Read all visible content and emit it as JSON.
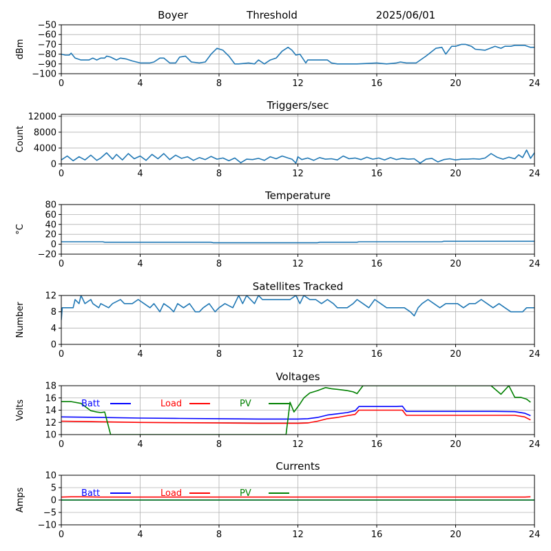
{
  "header": {
    "station": "Boyer",
    "trigger_mode": "Threshold",
    "date": "2025/06/01"
  },
  "colors": {
    "series_default": "#1f77b4",
    "batt": "#0000ff",
    "load": "#ff0000",
    "pv": "#008000",
    "grid": "#b0b0b0",
    "axis": "#000000"
  },
  "chart_data": [
    {
      "type": "line",
      "id": "signal",
      "title": "",
      "xlabel": "",
      "ylabel": "dBm",
      "xlim": [
        0,
        24
      ],
      "ylim": [
        -100,
        -50
      ],
      "xticks": [
        0,
        4,
        8,
        12,
        16,
        20,
        24
      ],
      "yticks": [
        -100,
        -90,
        -80,
        -70,
        -60,
        -50
      ],
      "grid": true,
      "series": [
        {
          "color": "#1f77b4",
          "x": [
            0,
            0.2,
            0.4,
            0.5,
            0.7,
            1.0,
            1.4,
            1.6,
            1.8,
            2.0,
            2.2,
            2.3,
            2.5,
            2.8,
            3.0,
            3.3,
            3.6,
            4.0,
            4.5,
            4.7,
            5.0,
            5.2,
            5.5,
            5.8,
            6.0,
            6.3,
            6.6,
            7.0,
            7.3,
            7.6,
            7.9,
            8.2,
            8.5,
            8.8,
            9.0,
            9.5,
            9.8,
            10.0,
            10.3,
            10.6,
            10.9,
            11.2,
            11.5,
            11.7,
            11.9,
            12.1,
            12.3,
            12.4,
            12.5,
            13.0,
            13.5,
            13.7,
            14.0,
            15.0,
            16.0,
            16.5,
            17.0,
            17.2,
            17.5,
            18.0,
            18.5,
            19.0,
            19.3,
            19.5,
            19.8,
            20.0,
            20.3,
            20.5,
            20.8,
            21.0,
            21.5,
            22.0,
            22.3,
            22.5,
            22.8,
            23.0,
            23.5,
            23.8,
            24.0
          ],
          "y": [
            -80,
            -81,
            -81,
            -79,
            -84,
            -86,
            -86,
            -84,
            -86,
            -84,
            -84,
            -82,
            -83,
            -86,
            -84,
            -85,
            -87,
            -89,
            -89,
            -88,
            -84,
            -84,
            -89,
            -89,
            -83,
            -82,
            -88,
            -89,
            -88,
            -80,
            -74,
            -76,
            -82,
            -90,
            -90,
            -89,
            -90,
            -86,
            -90,
            -86,
            -84,
            -77,
            -73,
            -76,
            -81,
            -80,
            -86,
            -89,
            -86,
            -86,
            -86,
            -89,
            -90,
            -90,
            -89,
            -90,
            -89,
            -88,
            -89,
            -89,
            -82,
            -74,
            -73,
            -80,
            -72,
            -72,
            -70,
            -70,
            -72,
            -75,
            -76,
            -72,
            -74,
            -72,
            -72,
            -71,
            -71,
            -73,
            -73
          ]
        }
      ]
    },
    {
      "type": "line",
      "id": "triggers",
      "title": "Triggers/sec",
      "xlabel": "",
      "ylabel": "Count",
      "xlim": [
        0,
        24
      ],
      "ylim": [
        0,
        12500
      ],
      "xticks": [
        0,
        4,
        8,
        12,
        16,
        20,
        24
      ],
      "yticks": [
        0,
        4000,
        8000,
        12000
      ],
      "grid": true,
      "series": [
        {
          "color": "#1f77b4",
          "x": [
            0,
            0.3,
            0.6,
            0.9,
            1.2,
            1.5,
            1.8,
            2.0,
            2.3,
            2.6,
            2.8,
            3.1,
            3.4,
            3.7,
            4.0,
            4.3,
            4.6,
            4.9,
            5.2,
            5.5,
            5.8,
            6.1,
            6.4,
            6.7,
            7.0,
            7.3,
            7.6,
            7.9,
            8.2,
            8.5,
            8.8,
            9.1,
            9.4,
            9.7,
            10.0,
            10.3,
            10.6,
            10.9,
            11.2,
            11.5,
            11.7,
            11.9,
            12.0,
            12.2,
            12.5,
            12.8,
            13.1,
            13.4,
            13.7,
            14.0,
            14.3,
            14.6,
            14.9,
            15.2,
            15.5,
            15.8,
            16.1,
            16.4,
            16.7,
            17.0,
            17.3,
            17.6,
            17.9,
            18.2,
            18.5,
            18.8,
            19.1,
            19.4,
            19.7,
            20.0,
            20.3,
            20.6,
            20.9,
            21.2,
            21.5,
            21.8,
            22.1,
            22.4,
            22.7,
            23.0,
            23.2,
            23.4,
            23.6,
            23.8,
            24.0
          ],
          "y": [
            1000,
            2000,
            800,
            1800,
            1000,
            2200,
            900,
            1500,
            2800,
            1200,
            2400,
            1000,
            2600,
            1300,
            2000,
            900,
            2400,
            1300,
            2600,
            1100,
            2200,
            1400,
            1800,
            900,
            1600,
            1100,
            1900,
            1200,
            1500,
            800,
            1500,
            300,
            1200,
            1100,
            1400,
            900,
            1800,
            1300,
            2000,
            1500,
            1200,
            200,
            1800,
            1100,
            1500,
            900,
            1600,
            1200,
            1300,
            1000,
            2000,
            1300,
            1500,
            1100,
            1700,
            1200,
            1500,
            1000,
            1600,
            1100,
            1400,
            1200,
            1300,
            200,
            1200,
            1400,
            500,
            1100,
            1300,
            1000,
            1200,
            1200,
            1300,
            1200,
            1500,
            2600,
            1700,
            1200,
            1700,
            1300,
            2300,
            1600,
            3500,
            1400,
            2800
          ]
        }
      ]
    },
    {
      "type": "line",
      "id": "temperature",
      "title": "Temperature",
      "xlabel": "",
      "ylabel": "°C",
      "xlim": [
        0,
        24
      ],
      "ylim": [
        -20,
        80
      ],
      "xticks": [
        0,
        4,
        8,
        12,
        16,
        20,
        24
      ],
      "yticks": [
        -20,
        0,
        20,
        40,
        60,
        80
      ],
      "grid": true,
      "series": [
        {
          "color": "#1f77b4",
          "x": [
            0,
            2.1,
            2.2,
            7.6,
            7.7,
            8.0,
            13.0,
            13.1,
            15.0,
            15.1,
            19.3,
            19.4,
            24.0
          ],
          "y": [
            5,
            5,
            4,
            4,
            3,
            3,
            3,
            4,
            4,
            5,
            5,
            6,
            6
          ]
        }
      ]
    },
    {
      "type": "line",
      "id": "satellites",
      "title": "Satellites Tracked",
      "xlabel": "",
      "ylabel": "Number",
      "xlim": [
        0,
        24
      ],
      "ylim": [
        0,
        12
      ],
      "xticks": [
        0,
        4,
        8,
        12,
        16,
        20,
        24
      ],
      "yticks": [
        0,
        4,
        8,
        12
      ],
      "grid": true,
      "series": [
        {
          "color": "#1f77b4",
          "x": [
            0,
            0.05,
            0.1,
            0.6,
            0.7,
            0.9,
            1.0,
            1.1,
            1.2,
            1.5,
            1.6,
            1.9,
            2.0,
            2.4,
            2.6,
            3.0,
            3.2,
            3.6,
            3.9,
            4.2,
            4.5,
            4.7,
            5.0,
            5.2,
            5.5,
            5.7,
            5.9,
            6.2,
            6.5,
            6.8,
            7.0,
            7.2,
            7.5,
            7.8,
            8.0,
            8.3,
            8.7,
            9.0,
            9.2,
            9.4,
            9.6,
            9.8,
            10.0,
            10.2,
            10.5,
            10.8,
            11.0,
            11.3,
            11.6,
            11.9,
            12.1,
            12.3,
            12.6,
            12.9,
            13.2,
            13.5,
            13.8,
            14.0,
            14.5,
            14.8,
            15.0,
            15.3,
            15.6,
            15.9,
            16.2,
            16.5,
            16.8,
            17.1,
            17.4,
            17.7,
            17.9,
            18.1,
            18.3,
            18.6,
            18.9,
            19.2,
            19.5,
            19.8,
            20.1,
            20.4,
            20.7,
            21.0,
            21.3,
            21.6,
            21.9,
            22.2,
            22.5,
            22.8,
            23.1,
            23.4,
            23.6,
            23.8,
            24.0
          ],
          "y": [
            6,
            9,
            9,
            9,
            11,
            10,
            12,
            11,
            10,
            11,
            10,
            9,
            10,
            9,
            10,
            11,
            10,
            10,
            11,
            10,
            9,
            10,
            8,
            10,
            9,
            8,
            10,
            9,
            10,
            8,
            8,
            9,
            10,
            8,
            9,
            10,
            9,
            12,
            10,
            12,
            11,
            10,
            12,
            11,
            11,
            11,
            11,
            11,
            11,
            12,
            10,
            12,
            11,
            11,
            10,
            11,
            10,
            9,
            9,
            10,
            11,
            10,
            9,
            11,
            10,
            9,
            9,
            9,
            9,
            8,
            7,
            9,
            10,
            11,
            10,
            9,
            10,
            10,
            10,
            9,
            10,
            10,
            11,
            10,
            9,
            10,
            9,
            8,
            8,
            8,
            9,
            9,
            9
          ]
        }
      ]
    },
    {
      "type": "line",
      "id": "voltages",
      "title": "Voltages",
      "xlabel": "",
      "ylabel": "Volts",
      "xlim": [
        0,
        24
      ],
      "ylim": [
        10,
        18
      ],
      "xticks": [
        0,
        4,
        8,
        12,
        16,
        20,
        24
      ],
      "yticks": [
        10,
        12,
        14,
        16,
        18
      ],
      "grid": true,
      "legend": "top-left",
      "series": [
        {
          "name": "Batt",
          "color": "#0000ff",
          "x": [
            0,
            2,
            4,
            6,
            8,
            10,
            12,
            12.5,
            13,
            13.5,
            14,
            14.5,
            14.9,
            15.1,
            16,
            17,
            17.3,
            17.5,
            18,
            20,
            22,
            23,
            23.5,
            23.8
          ],
          "y": [
            12.9,
            12.8,
            12.7,
            12.65,
            12.6,
            12.55,
            12.55,
            12.6,
            12.8,
            13.2,
            13.4,
            13.6,
            13.9,
            14.6,
            14.6,
            14.6,
            14.65,
            13.8,
            13.8,
            13.8,
            13.8,
            13.75,
            13.5,
            13.1
          ]
        },
        {
          "name": "Load",
          "color": "#ff0000",
          "x": [
            0,
            2,
            4,
            6,
            8,
            10,
            12,
            12.5,
            13,
            13.5,
            14,
            14.5,
            14.9,
            15.1,
            16,
            17,
            17.3,
            17.5,
            18,
            20,
            22,
            23,
            23.5,
            23.8
          ],
          "y": [
            12.2,
            12.1,
            12.0,
            11.95,
            11.9,
            11.85,
            11.85,
            11.9,
            12.2,
            12.6,
            12.8,
            13.1,
            13.3,
            14.0,
            14.0,
            14.0,
            14.0,
            13.15,
            13.15,
            13.15,
            13.15,
            13.15,
            12.9,
            12.4
          ]
        },
        {
          "name": "PV",
          "color": "#008000",
          "x": [
            0,
            0.5,
            1.0,
            1.5,
            1.8,
            2.0,
            2.2,
            2.5,
            11.4,
            11.6,
            11.8,
            12.1,
            12.3,
            12.6,
            13.0,
            13.4,
            13.7,
            14.0,
            14.5,
            14.8,
            15.0,
            15.3,
            21.8,
            22.3,
            22.7,
            23.0,
            23.3,
            23.6,
            23.8
          ],
          "y": [
            15.4,
            15.4,
            15.1,
            13.9,
            13.7,
            13.6,
            13.7,
            10.0,
            10.0,
            15.3,
            13.7,
            15.0,
            16.0,
            16.8,
            17.2,
            17.7,
            17.5,
            17.4,
            17.2,
            17.0,
            16.7,
            18.0,
            18.0,
            16.6,
            18.0,
            16.1,
            16.1,
            15.8,
            15.3
          ]
        }
      ]
    },
    {
      "type": "line",
      "id": "currents",
      "title": "Currents",
      "xlabel": "",
      "ylabel": "Amps",
      "xlim": [
        0,
        24
      ],
      "ylim": [
        -10,
        10
      ],
      "xticks": [
        0,
        4,
        8,
        12,
        16,
        20,
        24
      ],
      "yticks": [
        -10,
        -5,
        0,
        5,
        10
      ],
      "grid": true,
      "legend": "top-left",
      "series": [
        {
          "name": "Batt",
          "color": "#0000ff",
          "x": [
            0,
            24
          ],
          "y": [
            0,
            0
          ]
        },
        {
          "name": "Load",
          "color": "#ff0000",
          "x": [
            0,
            0.5,
            1,
            2,
            6,
            10,
            14,
            18,
            22,
            23.5,
            23.8
          ],
          "y": [
            1.2,
            1.3,
            1.3,
            1.2,
            1.2,
            1.2,
            1.2,
            1.2,
            1.2,
            1.2,
            1.3
          ]
        },
        {
          "name": "PV",
          "color": "#008000",
          "x": [
            0,
            24
          ],
          "y": [
            0,
            0
          ]
        }
      ]
    }
  ]
}
